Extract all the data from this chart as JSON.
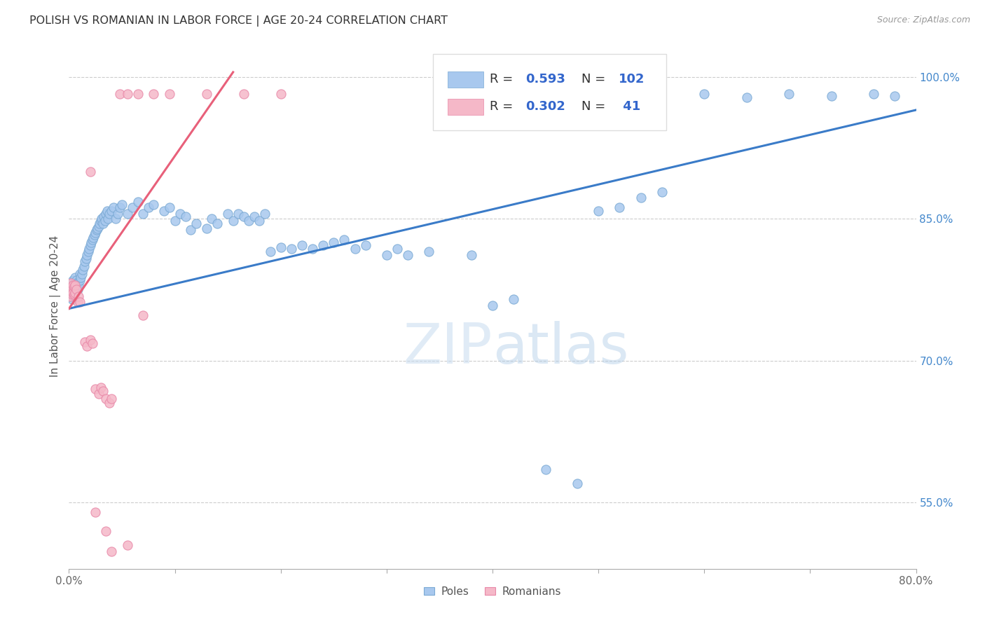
{
  "title": "POLISH VS ROMANIAN IN LABOR FORCE | AGE 20-24 CORRELATION CHART",
  "source": "Source: ZipAtlas.com",
  "ylabel": "In Labor Force | Age 20-24",
  "x_min": 0.0,
  "x_max": 0.8,
  "y_min": 0.48,
  "y_max": 1.035,
  "x_tick_pos": [
    0.0,
    0.1,
    0.2,
    0.3,
    0.4,
    0.5,
    0.6,
    0.7,
    0.8
  ],
  "x_tick_labels": [
    "0.0%",
    "",
    "",
    "",
    "",
    "",
    "",
    "",
    "80.0%"
  ],
  "y_tick_pos": [
    0.55,
    0.7,
    0.85,
    1.0
  ],
  "y_tick_labels": [
    "55.0%",
    "70.0%",
    "85.0%",
    "100.0%"
  ],
  "blue_color": "#A8C8EE",
  "blue_edge_color": "#7BAAD4",
  "pink_color": "#F5B8C8",
  "pink_edge_color": "#E888A8",
  "blue_line_color": "#3A7BC8",
  "pink_line_color": "#E8607A",
  "legend_R_blue": "0.593",
  "legend_N_blue": "102",
  "legend_R_pink": "0.302",
  "legend_N_pink": "41",
  "watermark_text": "ZIPatlas",
  "watermark_color": "#D8E8F8",
  "blue_line_x": [
    0.0,
    0.8
  ],
  "blue_line_y": [
    0.755,
    0.965
  ],
  "pink_line_x": [
    0.0,
    0.155
  ],
  "pink_line_y": [
    0.755,
    1.005
  ],
  "blue_points": [
    [
      0.001,
      0.768
    ],
    [
      0.002,
      0.772
    ],
    [
      0.002,
      0.778
    ],
    [
      0.003,
      0.765
    ],
    [
      0.003,
      0.775
    ],
    [
      0.003,
      0.782
    ],
    [
      0.004,
      0.77
    ],
    [
      0.004,
      0.778
    ],
    [
      0.004,
      0.785
    ],
    [
      0.005,
      0.768
    ],
    [
      0.005,
      0.775
    ],
    [
      0.005,
      0.782
    ],
    [
      0.006,
      0.772
    ],
    [
      0.006,
      0.78
    ],
    [
      0.006,
      0.788
    ],
    [
      0.007,
      0.778
    ],
    [
      0.007,
      0.785
    ],
    [
      0.008,
      0.775
    ],
    [
      0.008,
      0.783
    ],
    [
      0.009,
      0.78
    ],
    [
      0.01,
      0.785
    ],
    [
      0.01,
      0.792
    ],
    [
      0.011,
      0.788
    ],
    [
      0.012,
      0.792
    ],
    [
      0.013,
      0.796
    ],
    [
      0.014,
      0.8
    ],
    [
      0.015,
      0.805
    ],
    [
      0.016,
      0.808
    ],
    [
      0.017,
      0.812
    ],
    [
      0.018,
      0.815
    ],
    [
      0.019,
      0.818
    ],
    [
      0.02,
      0.822
    ],
    [
      0.021,
      0.825
    ],
    [
      0.022,
      0.828
    ],
    [
      0.023,
      0.83
    ],
    [
      0.024,
      0.833
    ],
    [
      0.025,
      0.835
    ],
    [
      0.026,
      0.838
    ],
    [
      0.027,
      0.84
    ],
    [
      0.028,
      0.842
    ],
    [
      0.029,
      0.845
    ],
    [
      0.03,
      0.848
    ],
    [
      0.031,
      0.85
    ],
    [
      0.032,
      0.845
    ],
    [
      0.033,
      0.852
    ],
    [
      0.034,
      0.848
    ],
    [
      0.035,
      0.855
    ],
    [
      0.036,
      0.858
    ],
    [
      0.037,
      0.85
    ],
    [
      0.038,
      0.855
    ],
    [
      0.04,
      0.858
    ],
    [
      0.042,
      0.862
    ],
    [
      0.044,
      0.85
    ],
    [
      0.046,
      0.855
    ],
    [
      0.048,
      0.862
    ],
    [
      0.05,
      0.865
    ],
    [
      0.055,
      0.855
    ],
    [
      0.06,
      0.862
    ],
    [
      0.065,
      0.868
    ],
    [
      0.07,
      0.855
    ],
    [
      0.075,
      0.862
    ],
    [
      0.08,
      0.865
    ],
    [
      0.09,
      0.858
    ],
    [
      0.095,
      0.862
    ],
    [
      0.1,
      0.848
    ],
    [
      0.105,
      0.855
    ],
    [
      0.11,
      0.852
    ],
    [
      0.115,
      0.838
    ],
    [
      0.12,
      0.845
    ],
    [
      0.13,
      0.84
    ],
    [
      0.135,
      0.85
    ],
    [
      0.14,
      0.845
    ],
    [
      0.15,
      0.855
    ],
    [
      0.155,
      0.848
    ],
    [
      0.16,
      0.855
    ],
    [
      0.165,
      0.852
    ],
    [
      0.17,
      0.848
    ],
    [
      0.175,
      0.852
    ],
    [
      0.18,
      0.848
    ],
    [
      0.185,
      0.855
    ],
    [
      0.19,
      0.815
    ],
    [
      0.2,
      0.82
    ],
    [
      0.21,
      0.818
    ],
    [
      0.22,
      0.822
    ],
    [
      0.23,
      0.818
    ],
    [
      0.24,
      0.822
    ],
    [
      0.25,
      0.825
    ],
    [
      0.26,
      0.828
    ],
    [
      0.27,
      0.818
    ],
    [
      0.28,
      0.822
    ],
    [
      0.3,
      0.812
    ],
    [
      0.31,
      0.818
    ],
    [
      0.32,
      0.812
    ],
    [
      0.34,
      0.815
    ],
    [
      0.38,
      0.812
    ],
    [
      0.4,
      0.758
    ],
    [
      0.42,
      0.765
    ],
    [
      0.45,
      0.585
    ],
    [
      0.48,
      0.57
    ],
    [
      0.5,
      0.858
    ],
    [
      0.52,
      0.862
    ],
    [
      0.54,
      0.872
    ],
    [
      0.56,
      0.878
    ],
    [
      0.6,
      0.982
    ],
    [
      0.64,
      0.978
    ],
    [
      0.68,
      0.982
    ],
    [
      0.72,
      0.98
    ],
    [
      0.76,
      0.982
    ],
    [
      0.78,
      0.98
    ]
  ],
  "pink_points": [
    [
      0.001,
      0.768
    ],
    [
      0.002,
      0.775
    ],
    [
      0.002,
      0.782
    ],
    [
      0.003,
      0.77
    ],
    [
      0.003,
      0.778
    ],
    [
      0.004,
      0.772
    ],
    [
      0.004,
      0.78
    ],
    [
      0.005,
      0.77
    ],
    [
      0.005,
      0.778
    ],
    [
      0.006,
      0.772
    ],
    [
      0.006,
      0.78
    ],
    [
      0.007,
      0.775
    ],
    [
      0.008,
      0.762
    ],
    [
      0.009,
      0.768
    ],
    [
      0.01,
      0.762
    ],
    [
      0.015,
      0.72
    ],
    [
      0.017,
      0.715
    ],
    [
      0.02,
      0.722
    ],
    [
      0.022,
      0.718
    ],
    [
      0.025,
      0.67
    ],
    [
      0.028,
      0.665
    ],
    [
      0.03,
      0.672
    ],
    [
      0.032,
      0.668
    ],
    [
      0.035,
      0.66
    ],
    [
      0.038,
      0.655
    ],
    [
      0.04,
      0.66
    ],
    [
      0.048,
      0.982
    ],
    [
      0.055,
      0.982
    ],
    [
      0.065,
      0.982
    ],
    [
      0.08,
      0.982
    ],
    [
      0.095,
      0.982
    ],
    [
      0.13,
      0.982
    ],
    [
      0.165,
      0.982
    ],
    [
      0.2,
      0.982
    ],
    [
      0.02,
      0.9
    ],
    [
      0.025,
      0.54
    ],
    [
      0.035,
      0.52
    ],
    [
      0.04,
      0.498
    ],
    [
      0.055,
      0.505
    ],
    [
      0.07,
      0.748
    ]
  ]
}
